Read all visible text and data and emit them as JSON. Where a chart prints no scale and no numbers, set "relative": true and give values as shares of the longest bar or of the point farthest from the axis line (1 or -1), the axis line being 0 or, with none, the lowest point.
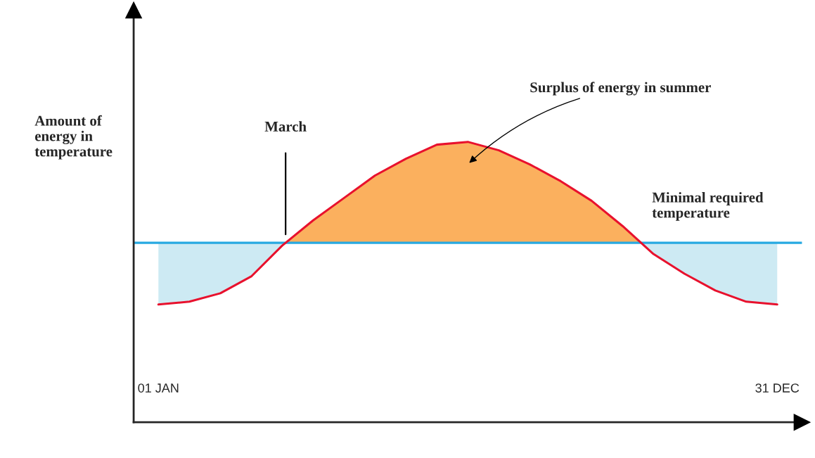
{
  "chart_data": {
    "type": "line",
    "relative": true,
    "ylabel": "Amount of energy in temperature",
    "categories": [
      "01 JAN",
      null,
      null,
      null,
      null,
      null,
      null,
      null,
      null,
      null,
      null,
      null,
      null,
      null,
      null,
      null,
      null,
      null,
      null,
      null,
      "31 DEC"
    ],
    "series": [
      {
        "color": "#e8112d",
        "values": [
          0.42,
          0.43,
          0.46,
          0.52,
          0.63,
          0.72,
          0.8,
          0.88,
          0.94,
          0.99,
          1.0,
          0.97,
          0.92,
          0.86,
          0.79,
          0.7,
          0.6,
          0.53,
          0.47,
          0.43,
          0.42
        ]
      }
    ],
    "ref_lines": [
      {
        "axis": "y",
        "value": 0.64,
        "label": "Minimal required temperature",
        "color": "#27a9e1"
      }
    ],
    "annotations": [
      "March",
      "Surplus of energy in summer"
    ],
    "grid": false
  }
}
